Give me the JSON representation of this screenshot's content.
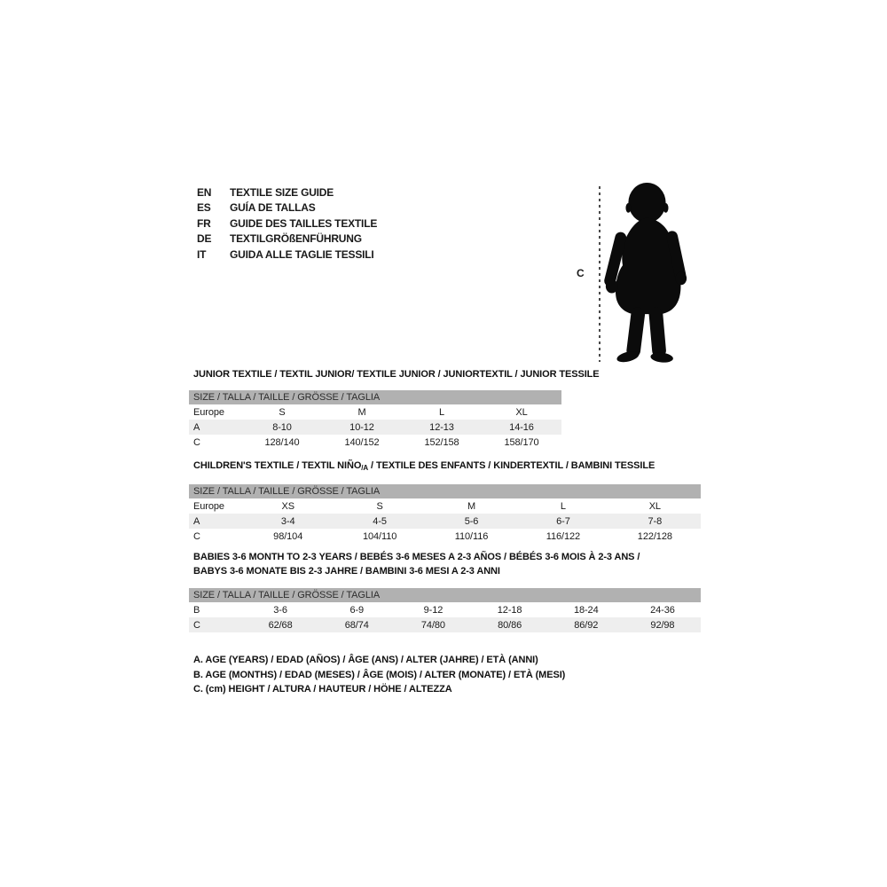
{
  "header": {
    "languages": [
      {
        "code": "EN",
        "label": "TEXTILE SIZE GUIDE"
      },
      {
        "code": "ES",
        "label": "GUÍA DE TALLAS"
      },
      {
        "code": "FR",
        "label": "GUIDE DES TAILLES TEXTILE"
      },
      {
        "code": "DE",
        "label": "TEXTILGRÖßENFÜHRUNG"
      },
      {
        "code": "IT",
        "label": "GUIDA ALLE TAGLIE TESSILI"
      }
    ]
  },
  "figure": {
    "icon": "baby-silhouette-icon",
    "height_label": "C"
  },
  "tables": [
    {
      "title_lines": [
        [
          {
            "text": "JUNIOR TEXTILE / TEXTIL JUNIOR/ TEXTILE JUNIOR / JUNIORTEXTIL / JUNIOR TESSILE"
          }
        ]
      ],
      "size_header": "SIZE / TALLA / TAILLE / GRÖSSE / TAGLIA",
      "rows": [
        {
          "label": "Europe",
          "cells": [
            "S",
            "M",
            "L",
            "XL"
          ]
        },
        {
          "label": "A",
          "cells": [
            "8-10",
            "10-12",
            "12-13",
            "14-16"
          ]
        },
        {
          "label": "C",
          "cells": [
            "128/140",
            "140/152",
            "152/158",
            "158/170"
          ]
        }
      ]
    },
    {
      "title_lines": [
        [
          {
            "text": "CHILDREN'S TEXTILE / TEXTIL NIÑO"
          },
          {
            "text": "/A",
            "sub": true
          },
          {
            "text": " / TEXTILE DES ENFANTS / KINDERTEXTIL / BAMBINI TESSILE"
          }
        ]
      ],
      "size_header": "SIZE / TALLA / TAILLE / GRÖSSE / TAGLIA",
      "rows": [
        {
          "label": "Europe",
          "cells": [
            "XS",
            "S",
            "M",
            "L",
            "XL"
          ]
        },
        {
          "label": "A",
          "cells": [
            "3-4",
            "4-5",
            "5-6",
            "6-7",
            "7-8"
          ]
        },
        {
          "label": "C",
          "cells": [
            "98/104",
            "104/110",
            "110/116",
            "116/122",
            "122/128"
          ]
        }
      ]
    },
    {
      "title_lines": [
        [
          {
            "text": "BABIES 3-6 MONTH TO 2-3 YEARS / BEBÉS 3-6 MESES A 2-3 AÑOS / BÉBÉS 3-6 MOIS À 2-3 ANS /"
          }
        ],
        [
          {
            "text": "BABYS 3-6 MONATE BIS 2-3 JAHRE / BAMBINI 3-6 MESI A 2-3 ANNI"
          }
        ]
      ],
      "size_header": "SIZE / TALLA / TAILLE / GRÖSSE / TAGLIA",
      "rows": [
        {
          "label": "B",
          "cells": [
            "3-6",
            "6-9",
            "9-12",
            "12-18",
            "18-24",
            "24-36"
          ]
        },
        {
          "label": "C",
          "cells": [
            "62/68",
            "68/74",
            "74/80",
            "80/86",
            "86/92",
            "92/98"
          ]
        }
      ]
    }
  ],
  "legend": {
    "lines": [
      "A. AGE (YEARS) / EDAD (AÑOS) / ÂGE (ANS) / ALTER (JAHRE) / ETÀ (ANNI)",
      "B. AGE (MONTHS) / EDAD (MESES) / ÂGE (MOIS) / ALTER (MONATE) / ETÀ (MESI)",
      "C. (cm) HEIGHT / ALTURA / HAUTEUR / HÖHE / ALTEZZA"
    ]
  },
  "colors": {
    "size_bar": "#b1b1b1",
    "row_shaded": "#eeeeee",
    "text": "#1a1a1a",
    "silhouette": "#0b0b0b"
  }
}
